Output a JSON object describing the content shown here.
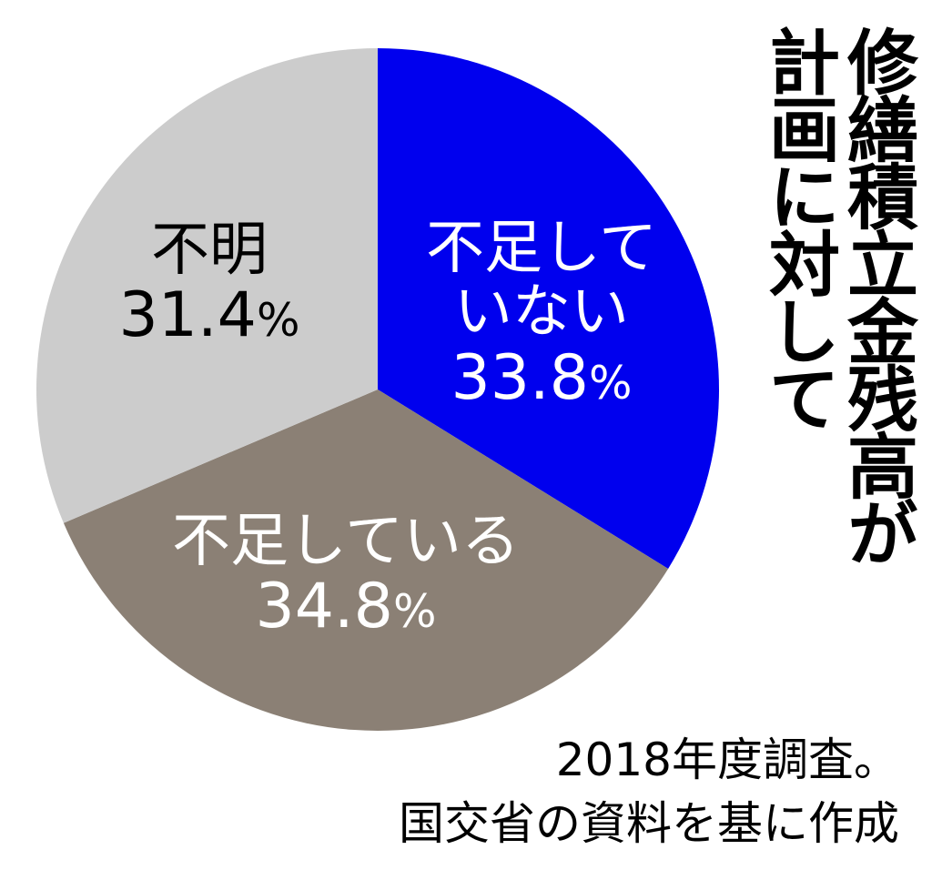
{
  "chart_data": {
    "type": "pie",
    "title_lines": [
      "修繕積立金残高が",
      "計画に対して"
    ],
    "slices": [
      {
        "label": "不足していない",
        "label_lines": [
          "不足して",
          "いない"
        ],
        "value": 33.8,
        "value_text": "33.8",
        "color": "#0000ee",
        "text_color": "#ffffff"
      },
      {
        "label": "不足している",
        "label_lines": [
          "不足している"
        ],
        "value": 34.8,
        "value_text": "34.8",
        "color": "#8b8075",
        "text_color": "#ffffff"
      },
      {
        "label": "不明",
        "label_lines": [
          "不明"
        ],
        "value": 31.4,
        "value_text": "31.4",
        "color": "#cccccc",
        "text_color": "#000000"
      }
    ],
    "unit": "%",
    "notes": [
      "2018年度調査。",
      "国交省の資料を基に作成"
    ]
  }
}
